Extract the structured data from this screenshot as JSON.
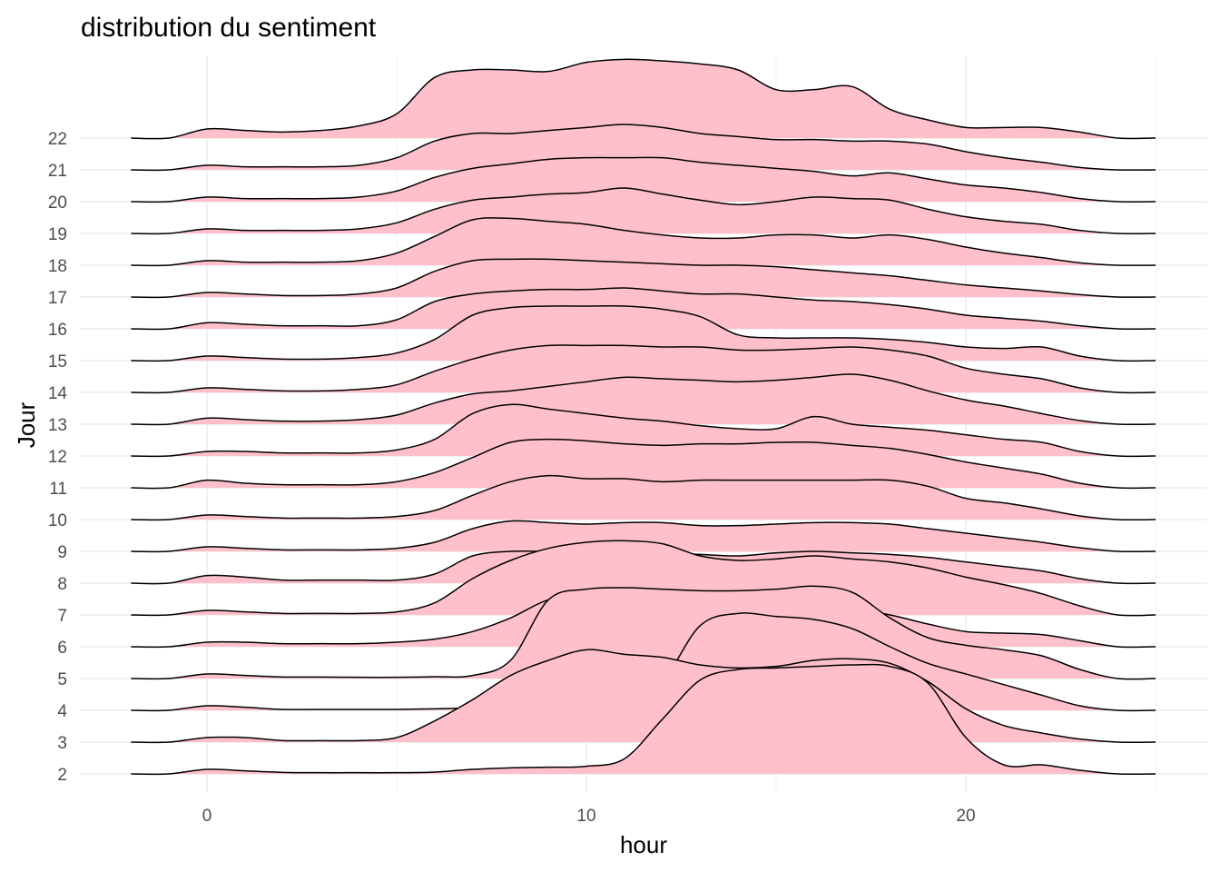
{
  "chart_data": {
    "type": "ridgeline",
    "title": "distribution du sentiment",
    "xlabel": "hour",
    "ylabel": "Jour",
    "xlim": [
      -2,
      25
    ],
    "x_ticks": [
      0,
      10,
      20
    ],
    "fill_color": "#ffc0cb",
    "line_color": "#000000",
    "grid": true,
    "scale": 2.9,
    "x": [
      -2,
      -1,
      0,
      1,
      2,
      3,
      4,
      5,
      6,
      7,
      8,
      9,
      10,
      11,
      12,
      13,
      14,
      15,
      16,
      17,
      18,
      19,
      20,
      21,
      22,
      23,
      24,
      25
    ],
    "series": [
      {
        "name": "2",
        "values": [
          0.0,
          0.0,
          0.15,
          0.1,
          0.05,
          0.04,
          0.04,
          0.04,
          0.06,
          0.15,
          0.2,
          0.22,
          0.25,
          0.5,
          1.8,
          3.1,
          3.45,
          3.5,
          3.55,
          3.6,
          3.55,
          3.0,
          1.2,
          0.3,
          0.3,
          0.12,
          0.0,
          0.0
        ]
      },
      {
        "name": "3",
        "values": [
          0.0,
          0.0,
          0.15,
          0.15,
          0.05,
          0.05,
          0.05,
          0.15,
          0.7,
          1.4,
          2.2,
          2.7,
          3.05,
          2.9,
          2.8,
          2.55,
          2.45,
          2.5,
          2.7,
          2.75,
          2.6,
          2.0,
          1.1,
          0.55,
          0.3,
          0.1,
          0.0,
          0.0
        ]
      },
      {
        "name": "4",
        "values": [
          0.0,
          0.0,
          0.15,
          0.1,
          0.03,
          0.03,
          0.03,
          0.03,
          0.05,
          0.08,
          0.1,
          0.12,
          0.15,
          0.25,
          0.95,
          2.8,
          3.2,
          3.1,
          3.0,
          2.7,
          2.1,
          1.55,
          1.2,
          0.85,
          0.5,
          0.15,
          0.0,
          0.0
        ]
      },
      {
        "name": "5",
        "values": [
          0.0,
          0.0,
          0.15,
          0.1,
          0.05,
          0.05,
          0.04,
          0.04,
          0.06,
          0.1,
          0.6,
          2.6,
          2.95,
          3.0,
          2.95,
          2.9,
          2.9,
          2.95,
          3.05,
          2.85,
          2.0,
          1.35,
          1.1,
          0.95,
          0.75,
          0.3,
          0.0,
          0.0
        ]
      },
      {
        "name": "6",
        "values": [
          0.0,
          0.0,
          0.15,
          0.15,
          0.1,
          0.1,
          0.1,
          0.15,
          0.25,
          0.5,
          0.95,
          1.55,
          1.7,
          1.7,
          1.65,
          1.3,
          1.2,
          1.3,
          1.4,
          1.25,
          1.05,
          0.75,
          0.5,
          0.45,
          0.4,
          0.2,
          0.0,
          0.0
        ]
      },
      {
        "name": "7",
        "values": [
          0.0,
          0.0,
          0.15,
          0.1,
          0.05,
          0.05,
          0.05,
          0.1,
          0.4,
          1.2,
          1.8,
          2.2,
          2.4,
          2.45,
          2.35,
          1.95,
          1.8,
          1.85,
          1.95,
          1.85,
          1.75,
          1.55,
          1.25,
          1.0,
          0.7,
          0.3,
          0.0,
          0.0
        ]
      },
      {
        "name": "8",
        "values": [
          0.0,
          0.0,
          0.25,
          0.2,
          0.1,
          0.1,
          0.1,
          0.1,
          0.3,
          0.9,
          1.05,
          1.05,
          1.1,
          1.05,
          1.0,
          0.95,
          0.9,
          1.0,
          1.05,
          1.0,
          0.95,
          0.85,
          0.7,
          0.55,
          0.4,
          0.15,
          0.0,
          0.0
        ]
      },
      {
        "name": "9",
        "values": [
          0.0,
          0.0,
          0.15,
          0.1,
          0.05,
          0.05,
          0.05,
          0.1,
          0.3,
          0.75,
          1.0,
          0.95,
          0.9,
          0.95,
          0.95,
          0.85,
          0.85,
          0.9,
          0.95,
          0.95,
          0.9,
          0.75,
          0.6,
          0.45,
          0.3,
          0.12,
          0.0,
          0.0
        ]
      },
      {
        "name": "10",
        "values": [
          0.0,
          0.0,
          0.15,
          0.1,
          0.05,
          0.05,
          0.05,
          0.1,
          0.3,
          0.8,
          1.25,
          1.45,
          1.35,
          1.35,
          1.25,
          1.3,
          1.3,
          1.3,
          1.3,
          1.3,
          1.3,
          1.1,
          0.7,
          0.55,
          0.35,
          0.12,
          0.0,
          0.0
        ]
      },
      {
        "name": "11",
        "values": [
          0.0,
          0.0,
          0.25,
          0.15,
          0.1,
          0.1,
          0.1,
          0.2,
          0.5,
          1.0,
          1.5,
          1.6,
          1.55,
          1.45,
          1.4,
          1.45,
          1.45,
          1.5,
          1.5,
          1.4,
          1.3,
          1.1,
          0.85,
          0.65,
          0.45,
          0.15,
          0.0,
          0.0
        ]
      },
      {
        "name": "12",
        "values": [
          0.0,
          0.0,
          0.15,
          0.15,
          0.1,
          0.1,
          0.1,
          0.2,
          0.55,
          1.4,
          1.7,
          1.55,
          1.4,
          1.25,
          1.15,
          1.0,
          0.9,
          0.9,
          1.3,
          1.05,
          0.95,
          0.85,
          0.7,
          0.55,
          0.45,
          0.15,
          0.0,
          0.0
        ]
      },
      {
        "name": "13",
        "values": [
          0.0,
          0.0,
          0.2,
          0.15,
          0.1,
          0.1,
          0.15,
          0.3,
          0.7,
          1.0,
          1.1,
          1.25,
          1.4,
          1.55,
          1.5,
          1.45,
          1.4,
          1.45,
          1.55,
          1.65,
          1.45,
          1.1,
          0.8,
          0.6,
          0.35,
          0.12,
          0.0,
          0.0
        ]
      },
      {
        "name": "14",
        "values": [
          0.0,
          0.0,
          0.15,
          0.1,
          0.05,
          0.05,
          0.1,
          0.25,
          0.7,
          1.1,
          1.4,
          1.55,
          1.55,
          1.55,
          1.5,
          1.5,
          1.4,
          1.4,
          1.45,
          1.5,
          1.4,
          1.2,
          0.8,
          0.6,
          0.45,
          0.15,
          0.0,
          0.0
        ]
      },
      {
        "name": "15",
        "values": [
          0.0,
          0.0,
          0.15,
          0.1,
          0.05,
          0.05,
          0.1,
          0.25,
          0.7,
          1.5,
          1.75,
          1.8,
          1.8,
          1.8,
          1.7,
          1.45,
          0.85,
          0.75,
          0.75,
          0.75,
          0.7,
          0.6,
          0.45,
          0.4,
          0.45,
          0.15,
          0.0,
          0.0
        ]
      },
      {
        "name": "16",
        "values": [
          0.0,
          0.0,
          0.2,
          0.15,
          0.1,
          0.1,
          0.1,
          0.3,
          0.9,
          1.15,
          1.25,
          1.3,
          1.3,
          1.35,
          1.25,
          1.15,
          1.15,
          1.05,
          0.95,
          0.9,
          0.8,
          0.65,
          0.45,
          0.35,
          0.25,
          0.1,
          0.0,
          0.0
        ]
      },
      {
        "name": "17",
        "values": [
          0.0,
          0.0,
          0.15,
          0.1,
          0.05,
          0.05,
          0.1,
          0.3,
          0.85,
          1.2,
          1.25,
          1.25,
          1.2,
          1.15,
          1.1,
          1.05,
          1.05,
          1.0,
          0.9,
          0.8,
          0.7,
          0.55,
          0.4,
          0.3,
          0.2,
          0.08,
          0.0,
          0.0
        ]
      },
      {
        "name": "18",
        "values": [
          0.0,
          0.0,
          0.15,
          0.1,
          0.1,
          0.1,
          0.15,
          0.4,
          0.95,
          1.5,
          1.55,
          1.45,
          1.35,
          1.15,
          1.0,
          0.9,
          0.9,
          1.0,
          1.0,
          0.9,
          1.0,
          0.85,
          0.6,
          0.4,
          0.25,
          0.08,
          0.0,
          0.0
        ]
      },
      {
        "name": "19",
        "values": [
          0.0,
          0.0,
          0.15,
          0.1,
          0.1,
          0.1,
          0.15,
          0.35,
          0.8,
          1.1,
          1.2,
          1.3,
          1.35,
          1.5,
          1.3,
          1.1,
          0.95,
          1.05,
          1.2,
          1.15,
          1.1,
          0.8,
          0.55,
          0.4,
          0.3,
          0.1,
          0.0,
          0.0
        ]
      },
      {
        "name": "20",
        "values": [
          0.0,
          0.0,
          0.15,
          0.1,
          0.1,
          0.1,
          0.15,
          0.35,
          0.8,
          1.1,
          1.25,
          1.4,
          1.45,
          1.45,
          1.45,
          1.3,
          1.2,
          1.1,
          1.0,
          0.85,
          0.95,
          0.75,
          0.55,
          0.45,
          0.3,
          0.1,
          0.0,
          0.0
        ]
      },
      {
        "name": "21",
        "values": [
          0.0,
          0.0,
          0.15,
          0.1,
          0.1,
          0.1,
          0.15,
          0.4,
          0.95,
          1.2,
          1.2,
          1.3,
          1.4,
          1.5,
          1.4,
          1.2,
          1.1,
          1.0,
          1.0,
          0.95,
          0.95,
          0.85,
          0.6,
          0.4,
          0.25,
          0.08,
          0.0,
          0.0
        ]
      },
      {
        "name": "22",
        "values": [
          0.0,
          0.0,
          0.3,
          0.25,
          0.2,
          0.25,
          0.4,
          0.8,
          2.0,
          2.25,
          2.25,
          2.2,
          2.5,
          2.6,
          2.55,
          2.45,
          2.25,
          1.6,
          1.6,
          1.7,
          0.95,
          0.6,
          0.35,
          0.35,
          0.35,
          0.2,
          0.0,
          0.0
        ]
      }
    ]
  }
}
